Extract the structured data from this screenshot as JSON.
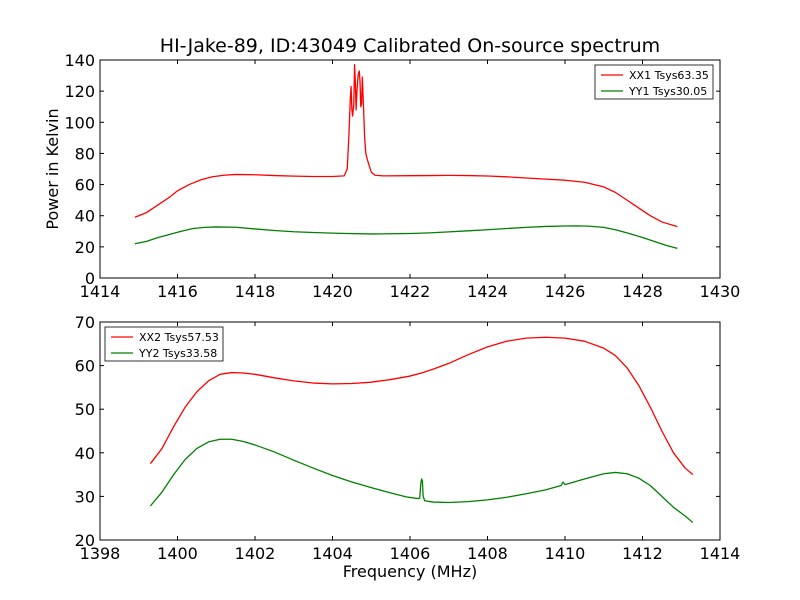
{
  "title": "HI-Jake-89, ID:43049 Calibrated On-source spectrum",
  "chart_data": [
    {
      "type": "line",
      "xlim": [
        1414,
        1430
      ],
      "ylim": [
        0,
        140
      ],
      "xticks": [
        1414,
        1416,
        1418,
        1420,
        1422,
        1424,
        1426,
        1428,
        1430
      ],
      "yticks": [
        0,
        20,
        40,
        60,
        80,
        100,
        120,
        140
      ],
      "xlabel": "",
      "ylabel": "Power in Kelvin",
      "legend_position": "top-right",
      "grid": false,
      "series": [
        {
          "name": "XX1 Tsys63.35",
          "color": "#ff0000",
          "points": [
            [
              1414.9,
              39
            ],
            [
              1415.2,
              42
            ],
            [
              1415.5,
              47
            ],
            [
              1415.8,
              52
            ],
            [
              1416.0,
              56
            ],
            [
              1416.3,
              60
            ],
            [
              1416.6,
              63
            ],
            [
              1416.9,
              65
            ],
            [
              1417.2,
              66
            ],
            [
              1417.5,
              66.5
            ],
            [
              1418.0,
              66.3
            ],
            [
              1418.5,
              65.8
            ],
            [
              1419.0,
              65.4
            ],
            [
              1419.5,
              65.2
            ],
            [
              1420.0,
              65.2
            ],
            [
              1420.3,
              65.6
            ],
            [
              1420.38,
              70
            ],
            [
              1420.42,
              90
            ],
            [
              1420.46,
              115
            ],
            [
              1420.48,
              123
            ],
            [
              1420.5,
              108
            ],
            [
              1420.52,
              104
            ],
            [
              1420.55,
              112
            ],
            [
              1420.57,
              137
            ],
            [
              1420.59,
              125
            ],
            [
              1420.61,
              108
            ],
            [
              1420.63,
              120
            ],
            [
              1420.66,
              130
            ],
            [
              1420.69,
              133
            ],
            [
              1420.71,
              126
            ],
            [
              1420.73,
              110
            ],
            [
              1420.75,
              112
            ],
            [
              1420.77,
              129
            ],
            [
              1420.8,
              110
            ],
            [
              1420.83,
              90
            ],
            [
              1420.86,
              80
            ],
            [
              1420.9,
              76
            ],
            [
              1420.95,
              72
            ],
            [
              1421.0,
              68
            ],
            [
              1421.1,
              66
            ],
            [
              1421.3,
              65.6
            ],
            [
              1422.0,
              65.7
            ],
            [
              1422.5,
              65.8
            ],
            [
              1423.0,
              65.9
            ],
            [
              1423.5,
              65.8
            ],
            [
              1424.0,
              65.5
            ],
            [
              1424.5,
              65
            ],
            [
              1425.0,
              64.2
            ],
            [
              1425.5,
              63.5
            ],
            [
              1426.0,
              62.8
            ],
            [
              1426.5,
              61.5
            ],
            [
              1427.0,
              58.5
            ],
            [
              1427.3,
              55
            ],
            [
              1427.6,
              50
            ],
            [
              1427.9,
              45
            ],
            [
              1428.2,
              40
            ],
            [
              1428.5,
              36
            ],
            [
              1428.9,
              33
            ]
          ]
        },
        {
          "name": "YY1 Tsys30.05",
          "color": "#008000",
          "points": [
            [
              1414.9,
              22
            ],
            [
              1415.2,
              23.5
            ],
            [
              1415.5,
              26
            ],
            [
              1415.8,
              28
            ],
            [
              1416.1,
              30
            ],
            [
              1416.4,
              31.8
            ],
            [
              1416.7,
              32.5
            ],
            [
              1417.0,
              32.8
            ],
            [
              1417.5,
              32.6
            ],
            [
              1418.0,
              31.5
            ],
            [
              1418.5,
              30.5
            ],
            [
              1419.0,
              29.7
            ],
            [
              1419.5,
              29.2
            ],
            [
              1420.0,
              28.8
            ],
            [
              1420.5,
              28.5
            ],
            [
              1421.0,
              28.3
            ],
            [
              1421.5,
              28.4
            ],
            [
              1422.0,
              28.6
            ],
            [
              1422.5,
              29
            ],
            [
              1423.0,
              29.6
            ],
            [
              1423.5,
              30.3
            ],
            [
              1424.0,
              31
            ],
            [
              1424.5,
              31.8
            ],
            [
              1425.0,
              32.5
            ],
            [
              1425.5,
              33.1
            ],
            [
              1426.0,
              33.4
            ],
            [
              1426.3,
              33.5
            ],
            [
              1426.6,
              33.3
            ],
            [
              1427.0,
              32.5
            ],
            [
              1427.3,
              31
            ],
            [
              1427.6,
              29
            ],
            [
              1428.0,
              26
            ],
            [
              1428.3,
              23.5
            ],
            [
              1428.6,
              21
            ],
            [
              1428.9,
              19
            ]
          ]
        }
      ]
    },
    {
      "type": "line",
      "xlim": [
        1398,
        1414
      ],
      "ylim": [
        20,
        70
      ],
      "xticks": [
        1398,
        1400,
        1402,
        1404,
        1406,
        1408,
        1410,
        1412,
        1414
      ],
      "yticks": [
        20,
        30,
        40,
        50,
        60,
        70
      ],
      "xlabel": "Frequency (MHz)",
      "ylabel": "",
      "legend_position": "top-left",
      "grid": false,
      "series": [
        {
          "name": "XX2 Tsys57.53",
          "color": "#ff0000",
          "points": [
            [
              1399.3,
              37.5
            ],
            [
              1399.6,
              41
            ],
            [
              1399.9,
              46
            ],
            [
              1400.2,
              50.5
            ],
            [
              1400.5,
              54
            ],
            [
              1400.8,
              56.5
            ],
            [
              1401.1,
              58
            ],
            [
              1401.4,
              58.4
            ],
            [
              1401.7,
              58.3
            ],
            [
              1402.0,
              58
            ],
            [
              1402.5,
              57.2
            ],
            [
              1403.0,
              56.5
            ],
            [
              1403.5,
              56
            ],
            [
              1404.0,
              55.8
            ],
            [
              1404.5,
              55.9
            ],
            [
              1405.0,
              56.2
            ],
            [
              1405.5,
              56.8
            ],
            [
              1406.0,
              57.6
            ],
            [
              1406.3,
              58.3
            ],
            [
              1406.6,
              59.2
            ],
            [
              1407.0,
              60.5
            ],
            [
              1407.5,
              62.5
            ],
            [
              1408.0,
              64.3
            ],
            [
              1408.5,
              65.6
            ],
            [
              1409.0,
              66.3
            ],
            [
              1409.5,
              66.5
            ],
            [
              1410.0,
              66.3
            ],
            [
              1410.5,
              65.6
            ],
            [
              1411.0,
              64
            ],
            [
              1411.3,
              62.3
            ],
            [
              1411.6,
              59.5
            ],
            [
              1411.9,
              55.5
            ],
            [
              1412.2,
              50.5
            ],
            [
              1412.5,
              45
            ],
            [
              1412.8,
              40
            ],
            [
              1413.1,
              36.5
            ],
            [
              1413.3,
              35
            ]
          ]
        },
        {
          "name": "YY2 Tsys33.58",
          "color": "#008000",
          "points": [
            [
              1399.3,
              27.8
            ],
            [
              1399.6,
              31
            ],
            [
              1399.9,
              35
            ],
            [
              1400.2,
              38.5
            ],
            [
              1400.5,
              41
            ],
            [
              1400.8,
              42.5
            ],
            [
              1401.1,
              43.1
            ],
            [
              1401.4,
              43.1
            ],
            [
              1401.7,
              42.6
            ],
            [
              1402.0,
              41.8
            ],
            [
              1402.5,
              40.2
            ],
            [
              1403.0,
              38.3
            ],
            [
              1403.5,
              36.5
            ],
            [
              1404.0,
              34.8
            ],
            [
              1404.5,
              33.3
            ],
            [
              1405.0,
              32
            ],
            [
              1405.5,
              30.8
            ],
            [
              1405.9,
              29.9
            ],
            [
              1406.2,
              29.5
            ],
            [
              1406.25,
              29.6
            ],
            [
              1406.28,
              33
            ],
            [
              1406.3,
              34
            ],
            [
              1406.32,
              33.5
            ],
            [
              1406.34,
              30
            ],
            [
              1406.38,
              29
            ],
            [
              1406.6,
              28.7
            ],
            [
              1407.0,
              28.6
            ],
            [
              1407.5,
              28.8
            ],
            [
              1408.0,
              29.2
            ],
            [
              1408.5,
              29.8
            ],
            [
              1409.0,
              30.6
            ],
            [
              1409.5,
              31.5
            ],
            [
              1409.9,
              32.5
            ],
            [
              1409.95,
              33.3
            ],
            [
              1410.0,
              32.7
            ],
            [
              1410.5,
              34
            ],
            [
              1411.0,
              35.2
            ],
            [
              1411.3,
              35.5
            ],
            [
              1411.6,
              35.2
            ],
            [
              1411.9,
              34.2
            ],
            [
              1412.2,
              32.5
            ],
            [
              1412.5,
              30
            ],
            [
              1412.8,
              27.5
            ],
            [
              1413.1,
              25.5
            ],
            [
              1413.3,
              24
            ]
          ]
        }
      ]
    }
  ]
}
